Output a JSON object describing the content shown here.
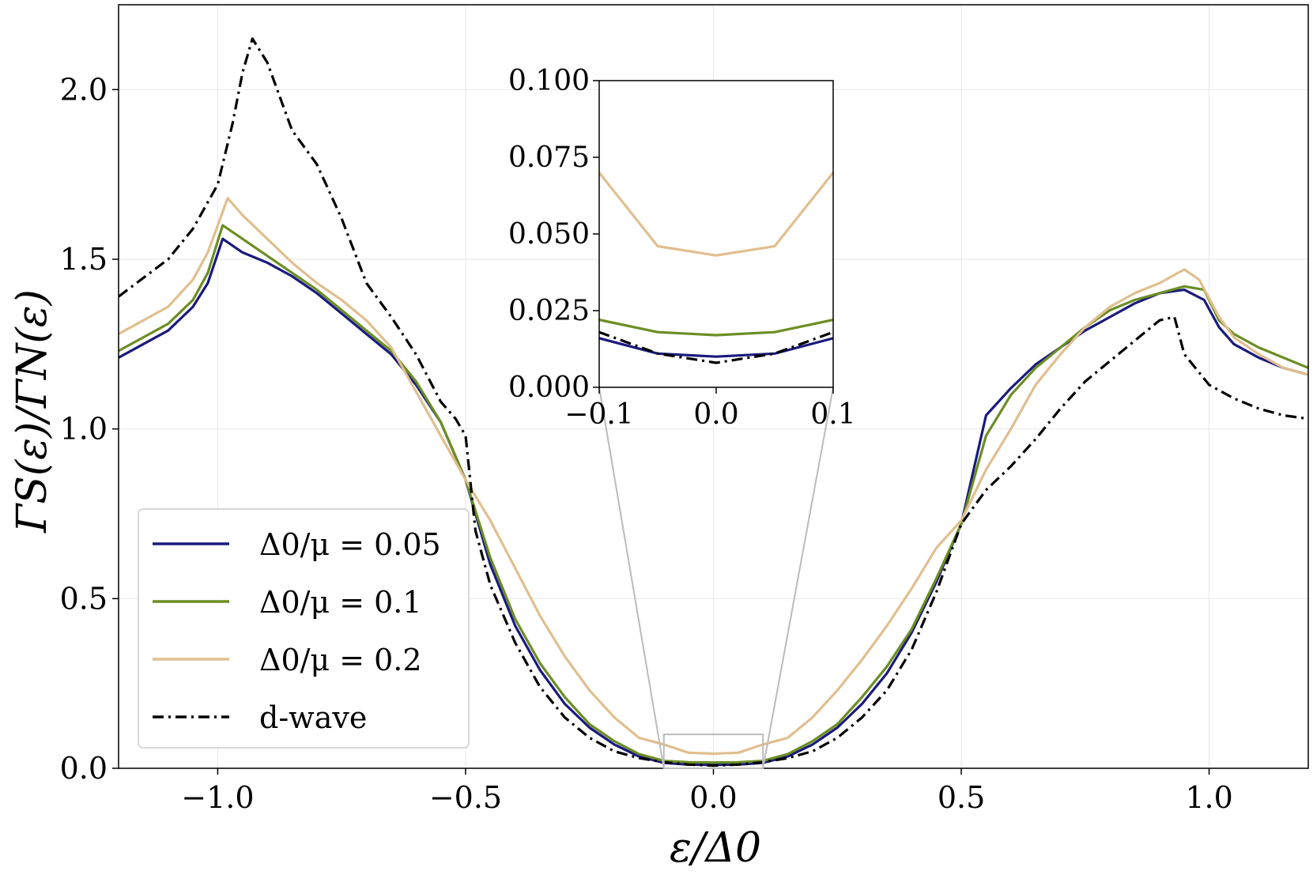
{
  "chart_data": {
    "type": "line",
    "xlabel": "ε/Δ0",
    "ylabel": "ΓS(ε)/ΓN(ε)",
    "xlim": [
      -1.2,
      1.2
    ],
    "ylim": [
      0.0,
      2.25
    ],
    "xticks": [
      "−1.0",
      "−0.5",
      "0.0",
      "0.5",
      "1.0"
    ],
    "yticks": [
      "0.0",
      "0.5",
      "1.0",
      "1.5",
      "2.0"
    ],
    "grid": true,
    "legend_position": "lower-left",
    "series": [
      {
        "name": "Δ0/μ = 0.05",
        "color": "#1a1a7e",
        "dash": "solid",
        "x": [
          -1.2,
          -1.1,
          -1.05,
          -1.02,
          -0.99,
          -0.95,
          -0.9,
          -0.85,
          -0.8,
          -0.75,
          -0.7,
          -0.65,
          -0.6,
          -0.55,
          -0.5,
          -0.45,
          -0.4,
          -0.35,
          -0.3,
          -0.25,
          -0.2,
          -0.15,
          -0.1,
          -0.05,
          0.0,
          0.05,
          0.1,
          0.15,
          0.2,
          0.25,
          0.3,
          0.35,
          0.4,
          0.45,
          0.5,
          0.55,
          0.6,
          0.65,
          0.7,
          0.75,
          0.8,
          0.85,
          0.9,
          0.95,
          0.99,
          1.02,
          1.05,
          1.1,
          1.15,
          1.2
        ],
        "y": [
          1.21,
          1.29,
          1.36,
          1.43,
          1.56,
          1.52,
          1.49,
          1.45,
          1.4,
          1.34,
          1.28,
          1.22,
          1.13,
          1.02,
          0.85,
          0.6,
          0.42,
          0.29,
          0.19,
          0.12,
          0.07,
          0.035,
          0.016,
          0.011,
          0.01,
          0.011,
          0.016,
          0.035,
          0.07,
          0.12,
          0.19,
          0.28,
          0.4,
          0.55,
          0.72,
          1.04,
          1.12,
          1.19,
          1.24,
          1.29,
          1.33,
          1.37,
          1.4,
          1.41,
          1.38,
          1.3,
          1.25,
          1.21,
          1.18,
          1.16
        ]
      },
      {
        "name": "Δ0/μ = 0.1",
        "color": "#6b8e23",
        "dash": "solid",
        "x": [
          -1.2,
          -1.1,
          -1.05,
          -1.02,
          -0.99,
          -0.95,
          -0.9,
          -0.85,
          -0.8,
          -0.75,
          -0.7,
          -0.65,
          -0.6,
          -0.55,
          -0.5,
          -0.45,
          -0.4,
          -0.35,
          -0.3,
          -0.25,
          -0.2,
          -0.15,
          -0.1,
          -0.05,
          0.0,
          0.05,
          0.1,
          0.15,
          0.2,
          0.25,
          0.3,
          0.35,
          0.4,
          0.45,
          0.5,
          0.55,
          0.6,
          0.65,
          0.7,
          0.75,
          0.8,
          0.85,
          0.9,
          0.95,
          0.99,
          1.02,
          1.05,
          1.1,
          1.15,
          1.2
        ],
        "y": [
          1.23,
          1.31,
          1.38,
          1.46,
          1.6,
          1.56,
          1.51,
          1.46,
          1.41,
          1.35,
          1.29,
          1.23,
          1.14,
          1.02,
          0.85,
          0.62,
          0.44,
          0.31,
          0.21,
          0.13,
          0.08,
          0.042,
          0.022,
          0.018,
          0.017,
          0.018,
          0.022,
          0.042,
          0.08,
          0.13,
          0.21,
          0.3,
          0.41,
          0.56,
          0.72,
          0.98,
          1.1,
          1.18,
          1.24,
          1.3,
          1.35,
          1.38,
          1.4,
          1.42,
          1.41,
          1.32,
          1.28,
          1.24,
          1.21,
          1.18
        ]
      },
      {
        "name": "Δ0/μ = 0.2",
        "color": "#e0bf8f",
        "dash": "solid",
        "x": [
          -1.2,
          -1.1,
          -1.05,
          -1.02,
          -0.98,
          -0.95,
          -0.9,
          -0.85,
          -0.8,
          -0.75,
          -0.7,
          -0.65,
          -0.6,
          -0.55,
          -0.5,
          -0.45,
          -0.4,
          -0.35,
          -0.3,
          -0.25,
          -0.2,
          -0.15,
          -0.1,
          -0.05,
          0.0,
          0.05,
          0.1,
          0.15,
          0.2,
          0.25,
          0.3,
          0.35,
          0.4,
          0.45,
          0.5,
          0.55,
          0.6,
          0.65,
          0.7,
          0.75,
          0.8,
          0.85,
          0.9,
          0.95,
          0.98,
          1.02,
          1.05,
          1.1,
          1.15,
          1.2
        ],
        "y": [
          1.28,
          1.36,
          1.44,
          1.52,
          1.68,
          1.63,
          1.56,
          1.49,
          1.43,
          1.38,
          1.32,
          1.24,
          1.11,
          0.98,
          0.85,
          0.73,
          0.59,
          0.45,
          0.33,
          0.23,
          0.15,
          0.09,
          0.07,
          0.046,
          0.043,
          0.046,
          0.07,
          0.09,
          0.15,
          0.23,
          0.32,
          0.42,
          0.53,
          0.65,
          0.73,
          0.88,
          1.0,
          1.13,
          1.22,
          1.3,
          1.36,
          1.4,
          1.43,
          1.47,
          1.44,
          1.33,
          1.27,
          1.22,
          1.18,
          1.16
        ]
      },
      {
        "name": "d-wave",
        "color": "#000000",
        "dash": "dashdot",
        "x": [
          -1.2,
          -1.1,
          -1.05,
          -1.0,
          -0.97,
          -0.95,
          -0.93,
          -0.9,
          -0.87,
          -0.85,
          -0.8,
          -0.75,
          -0.7,
          -0.65,
          -0.6,
          -0.55,
          -0.52,
          -0.5,
          -0.48,
          -0.45,
          -0.4,
          -0.35,
          -0.3,
          -0.25,
          -0.2,
          -0.15,
          -0.1,
          -0.05,
          0.0,
          0.05,
          0.1,
          0.15,
          0.2,
          0.25,
          0.3,
          0.35,
          0.4,
          0.45,
          0.5,
          0.55,
          0.6,
          0.65,
          0.7,
          0.75,
          0.8,
          0.85,
          0.9,
          0.93,
          0.95,
          1.0,
          1.05,
          1.1,
          1.15,
          1.2
        ],
        "y": [
          1.39,
          1.5,
          1.59,
          1.72,
          1.9,
          2.05,
          2.15,
          2.08,
          1.96,
          1.88,
          1.78,
          1.62,
          1.43,
          1.33,
          1.22,
          1.08,
          1.03,
          0.98,
          0.7,
          0.54,
          0.37,
          0.24,
          0.15,
          0.09,
          0.05,
          0.03,
          0.018,
          0.011,
          0.008,
          0.011,
          0.018,
          0.03,
          0.05,
          0.09,
          0.15,
          0.23,
          0.35,
          0.52,
          0.72,
          0.82,
          0.89,
          0.97,
          1.06,
          1.14,
          1.2,
          1.26,
          1.32,
          1.33,
          1.22,
          1.13,
          1.09,
          1.06,
          1.04,
          1.03
        ]
      }
    ],
    "inset": {
      "xlim": [
        -0.1,
        0.1
      ],
      "ylim": [
        0.0,
        0.1
      ],
      "xticks": [
        "−0.1",
        "0.0",
        "0.1"
      ],
      "yticks": [
        "0.000",
        "0.025",
        "0.050",
        "0.075",
        "0.100"
      ],
      "grid": false
    }
  }
}
